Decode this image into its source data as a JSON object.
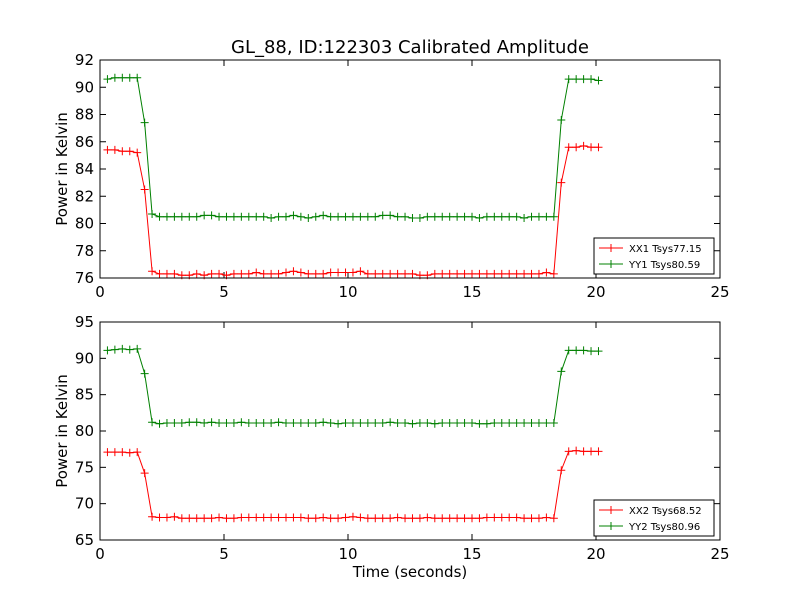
{
  "figure_title": "GL_88, ID:122303 Calibrated Amplitude",
  "chart_data": [
    {
      "type": "line",
      "title": "GL_88, ID:122303 Calibrated Amplitude",
      "xlabel": "",
      "ylabel": "Power in Kelvin",
      "xlim": [
        0,
        25
      ],
      "ylim": [
        76,
        92
      ],
      "xticks": [
        0,
        5,
        10,
        15,
        20,
        25
      ],
      "yticks": [
        76,
        78,
        80,
        82,
        84,
        86,
        88,
        90,
        92
      ],
      "grid": false,
      "legend_position": "lower-right",
      "x": [
        0.3,
        0.6,
        0.9,
        1.2,
        1.5,
        1.8,
        2.1,
        2.4,
        2.7,
        3.0,
        3.3,
        3.6,
        3.9,
        4.2,
        4.5,
        4.8,
        5.1,
        5.4,
        5.7,
        6.0,
        6.3,
        6.6,
        6.9,
        7.2,
        7.5,
        7.8,
        8.1,
        8.4,
        8.7,
        9.0,
        9.3,
        9.6,
        9.9,
        10.2,
        10.5,
        10.8,
        11.1,
        11.4,
        11.7,
        12.0,
        12.3,
        12.6,
        12.9,
        13.2,
        13.5,
        13.8,
        14.1,
        14.4,
        14.7,
        15.0,
        15.3,
        15.6,
        15.9,
        16.2,
        16.5,
        16.8,
        17.1,
        17.4,
        17.7,
        18.0,
        18.3,
        18.6,
        18.9,
        19.2,
        19.5,
        19.8,
        20.1
      ],
      "series": [
        {
          "name": "XX1 Tsys77.15",
          "color": "#ff0000",
          "values": [
            85.4,
            85.4,
            85.3,
            85.3,
            85.2,
            82.5,
            76.5,
            76.3,
            76.3,
            76.3,
            76.2,
            76.2,
            76.3,
            76.2,
            76.3,
            76.3,
            76.2,
            76.3,
            76.3,
            76.3,
            76.4,
            76.3,
            76.3,
            76.3,
            76.4,
            76.5,
            76.4,
            76.3,
            76.3,
            76.3,
            76.4,
            76.4,
            76.4,
            76.4,
            76.5,
            76.3,
            76.3,
            76.3,
            76.3,
            76.3,
            76.3,
            76.3,
            76.2,
            76.2,
            76.3,
            76.3,
            76.3,
            76.3,
            76.3,
            76.3,
            76.3,
            76.3,
            76.3,
            76.3,
            76.3,
            76.3,
            76.3,
            76.3,
            76.3,
            76.4,
            76.3,
            83.0,
            85.6,
            85.6,
            85.7,
            85.6,
            85.6
          ]
        },
        {
          "name": "YY1 Tsys80.59",
          "color": "#008000",
          "values": [
            90.6,
            90.7,
            90.7,
            90.7,
            90.7,
            87.4,
            80.7,
            80.5,
            80.5,
            80.5,
            80.5,
            80.5,
            80.5,
            80.6,
            80.6,
            80.5,
            80.5,
            80.5,
            80.5,
            80.5,
            80.5,
            80.5,
            80.4,
            80.5,
            80.5,
            80.6,
            80.5,
            80.4,
            80.5,
            80.6,
            80.5,
            80.5,
            80.5,
            80.5,
            80.5,
            80.5,
            80.5,
            80.6,
            80.6,
            80.5,
            80.5,
            80.4,
            80.4,
            80.5,
            80.5,
            80.5,
            80.5,
            80.5,
            80.5,
            80.5,
            80.4,
            80.5,
            80.5,
            80.5,
            80.5,
            80.5,
            80.4,
            80.5,
            80.5,
            80.5,
            80.5,
            87.6,
            90.6,
            90.6,
            90.6,
            90.6,
            90.5
          ]
        }
      ]
    },
    {
      "type": "line",
      "title": "",
      "xlabel": "Time (seconds)",
      "ylabel": "Power in Kelvin",
      "xlim": [
        0,
        25
      ],
      "ylim": [
        65,
        95
      ],
      "xticks": [
        0,
        5,
        10,
        15,
        20,
        25
      ],
      "yticks": [
        65,
        70,
        75,
        80,
        85,
        90,
        95
      ],
      "grid": false,
      "legend_position": "lower-right",
      "x": [
        0.3,
        0.6,
        0.9,
        1.2,
        1.5,
        1.8,
        2.1,
        2.4,
        2.7,
        3.0,
        3.3,
        3.6,
        3.9,
        4.2,
        4.5,
        4.8,
        5.1,
        5.4,
        5.7,
        6.0,
        6.3,
        6.6,
        6.9,
        7.2,
        7.5,
        7.8,
        8.1,
        8.4,
        8.7,
        9.0,
        9.3,
        9.6,
        9.9,
        10.2,
        10.5,
        10.8,
        11.1,
        11.4,
        11.7,
        12.0,
        12.3,
        12.6,
        12.9,
        13.2,
        13.5,
        13.8,
        14.1,
        14.4,
        14.7,
        15.0,
        15.3,
        15.6,
        15.9,
        16.2,
        16.5,
        16.8,
        17.1,
        17.4,
        17.7,
        18.0,
        18.3,
        18.6,
        18.9,
        19.2,
        19.5,
        19.8,
        20.1
      ],
      "series": [
        {
          "name": "XX2 Tsys68.52",
          "color": "#ff0000",
          "values": [
            77.1,
            77.1,
            77.1,
            77.0,
            77.1,
            74.2,
            68.2,
            68.1,
            68.1,
            68.2,
            68.0,
            68.0,
            68.0,
            68.0,
            68.0,
            68.1,
            68.0,
            68.0,
            68.1,
            68.1,
            68.1,
            68.1,
            68.1,
            68.1,
            68.1,
            68.1,
            68.1,
            68.0,
            68.0,
            68.1,
            68.0,
            68.0,
            68.1,
            68.2,
            68.1,
            68.0,
            68.0,
            68.0,
            68.0,
            68.1,
            68.0,
            68.0,
            68.0,
            68.1,
            68.0,
            68.0,
            68.0,
            68.0,
            68.0,
            68.0,
            68.0,
            68.1,
            68.1,
            68.1,
            68.1,
            68.1,
            68.0,
            68.0,
            68.0,
            68.1,
            68.0,
            74.6,
            77.2,
            77.3,
            77.2,
            77.2,
            77.2
          ]
        },
        {
          "name": "YY2 Tsys80.96",
          "color": "#008000",
          "values": [
            91.1,
            91.2,
            91.3,
            91.2,
            91.3,
            87.9,
            81.2,
            81.0,
            81.1,
            81.1,
            81.1,
            81.2,
            81.2,
            81.1,
            81.2,
            81.1,
            81.1,
            81.1,
            81.2,
            81.1,
            81.1,
            81.1,
            81.1,
            81.2,
            81.1,
            81.1,
            81.1,
            81.1,
            81.1,
            81.2,
            81.1,
            81.0,
            81.1,
            81.1,
            81.1,
            81.1,
            81.1,
            81.1,
            81.2,
            81.1,
            81.1,
            81.0,
            81.1,
            81.1,
            81.0,
            81.1,
            81.1,
            81.1,
            81.1,
            81.1,
            81.0,
            81.0,
            81.1,
            81.1,
            81.1,
            81.1,
            81.1,
            81.1,
            81.1,
            81.1,
            81.1,
            88.2,
            91.1,
            91.1,
            91.1,
            91.0,
            91.0
          ]
        }
      ]
    }
  ]
}
